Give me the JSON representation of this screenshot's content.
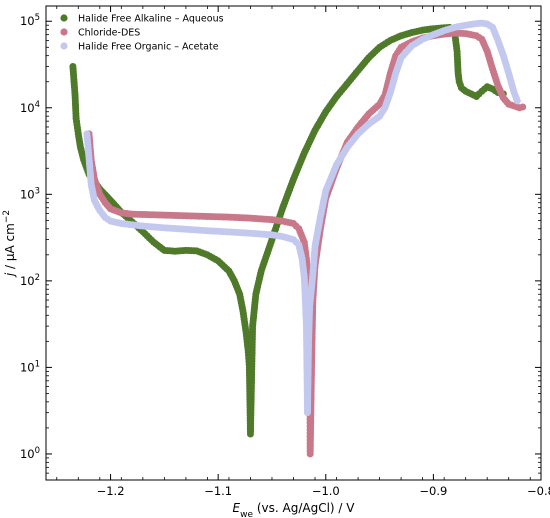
{
  "chart_data": {
    "type": "scatter",
    "xlabel": {
      "main": "E",
      "sub": "we",
      "rest": " (vs. Ag/AgCl) / V"
    },
    "ylabel": {
      "prefix": "j",
      "rest": " / µA cm",
      "sup": "−2"
    },
    "xlim": [
      -1.26,
      -0.8
    ],
    "ylim": [
      0.5,
      150000
    ],
    "y_scale": "log",
    "x_ticks": [
      -1.2,
      -1.1,
      -1.0,
      -0.9,
      -0.8
    ],
    "x_tick_labels": [
      "−1.2",
      "−1.1",
      "−1.0",
      "−0.9",
      "−0.8"
    ],
    "y_tick_exponents": [
      0,
      1,
      2,
      3,
      4,
      5
    ],
    "grid": false,
    "legend_position": "top-left",
    "series": [
      {
        "name": "Halide Free Alkaline – Aqueous",
        "color": "#4e7a2a",
        "points": [
          [
            -1.235,
            30000
          ],
          [
            -1.233,
            14000
          ],
          [
            -1.232,
            7500
          ],
          [
            -1.23,
            5000
          ],
          [
            -1.228,
            3500
          ],
          [
            -1.225,
            2500
          ],
          [
            -1.22,
            1700
          ],
          [
            -1.21,
            1150
          ],
          [
            -1.2,
            850
          ],
          [
            -1.19,
            620
          ],
          [
            -1.18,
            480
          ],
          [
            -1.17,
            370
          ],
          [
            -1.16,
            280
          ],
          [
            -1.15,
            225
          ],
          [
            -1.14,
            220
          ],
          [
            -1.13,
            225
          ],
          [
            -1.12,
            222
          ],
          [
            -1.11,
            200
          ],
          [
            -1.1,
            170
          ],
          [
            -1.09,
            130
          ],
          [
            -1.085,
            100
          ],
          [
            -1.08,
            70
          ],
          [
            -1.077,
            45
          ],
          [
            -1.074,
            25
          ],
          [
            -1.072,
            15
          ],
          [
            -1.071,
            10
          ],
          [
            -1.07,
            1.7
          ],
          [
            -1.068,
            30
          ],
          [
            -1.065,
            70
          ],
          [
            -1.06,
            130
          ],
          [
            -1.05,
            300
          ],
          [
            -1.04,
            700
          ],
          [
            -1.03,
            1500
          ],
          [
            -1.02,
            3000
          ],
          [
            -1.01,
            5500
          ],
          [
            -1.0,
            9000
          ],
          [
            -0.99,
            13500
          ],
          [
            -0.98,
            19000
          ],
          [
            -0.97,
            27000
          ],
          [
            -0.96,
            38000
          ],
          [
            -0.95,
            50000
          ],
          [
            -0.94,
            60000
          ],
          [
            -0.93,
            68000
          ],
          [
            -0.92,
            74000
          ],
          [
            -0.91,
            79000
          ],
          [
            -0.9,
            82000
          ],
          [
            -0.89,
            84000
          ],
          [
            -0.885,
            85000
          ],
          [
            -0.88,
            70000
          ],
          [
            -0.878,
            45000
          ],
          [
            -0.877,
            25000
          ],
          [
            -0.876,
            20000
          ],
          [
            -0.874,
            17000
          ],
          [
            -0.87,
            15500
          ],
          [
            -0.865,
            14500
          ],
          [
            -0.86,
            13500
          ],
          [
            -0.855,
            15500
          ],
          [
            -0.85,
            17500
          ],
          [
            -0.845,
            16500
          ],
          [
            -0.84,
            15000
          ],
          [
            -0.835,
            14500
          ]
        ]
      },
      {
        "name": "Chloride-DES",
        "color": "#c9788a",
        "points": [
          [
            -1.22,
            5000
          ],
          [
            -1.218,
            2500
          ],
          [
            -1.215,
            1500
          ],
          [
            -1.21,
            1000
          ],
          [
            -1.205,
            800
          ],
          [
            -1.2,
            680
          ],
          [
            -1.19,
            610
          ],
          [
            -1.18,
            590
          ],
          [
            -1.17,
            585
          ],
          [
            -1.15,
            575
          ],
          [
            -1.13,
            565
          ],
          [
            -1.11,
            555
          ],
          [
            -1.09,
            545
          ],
          [
            -1.07,
            530
          ],
          [
            -1.05,
            510
          ],
          [
            -1.04,
            490
          ],
          [
            -1.03,
            460
          ],
          [
            -1.025,
            400
          ],
          [
            -1.02,
            280
          ],
          [
            -1.018,
            180
          ],
          [
            -1.016,
            90
          ],
          [
            -1.015,
            40
          ],
          [
            -1.0145,
            1.0
          ],
          [
            -1.013,
            15
          ],
          [
            -1.012,
            60
          ],
          [
            -1.01,
            150
          ],
          [
            -1.005,
            400
          ],
          [
            -1.0,
            900
          ],
          [
            -0.99,
            2000
          ],
          [
            -0.98,
            4000
          ],
          [
            -0.97,
            6000
          ],
          [
            -0.96,
            8500
          ],
          [
            -0.95,
            11000
          ],
          [
            -0.945,
            14000
          ],
          [
            -0.94,
            25000
          ],
          [
            -0.935,
            40000
          ],
          [
            -0.93,
            50000
          ],
          [
            -0.92,
            58000
          ],
          [
            -0.91,
            64000
          ],
          [
            -0.9,
            68000
          ],
          [
            -0.89,
            71000
          ],
          [
            -0.88,
            73000
          ],
          [
            -0.87,
            72000
          ],
          [
            -0.86,
            68000
          ],
          [
            -0.855,
            62000
          ],
          [
            -0.85,
            45000
          ],
          [
            -0.845,
            28000
          ],
          [
            -0.84,
            18000
          ],
          [
            -0.835,
            13000
          ],
          [
            -0.83,
            11000
          ],
          [
            -0.825,
            10500
          ],
          [
            -0.82,
            10000
          ],
          [
            -0.817,
            10200
          ]
        ]
      },
      {
        "name": "Halide Free Organic – Acetate",
        "color": "#c3c9ee",
        "points": [
          [
            -1.222,
            5000
          ],
          [
            -1.22,
            2600
          ],
          [
            -1.218,
            1300
          ],
          [
            -1.215,
            850
          ],
          [
            -1.21,
            650
          ],
          [
            -1.205,
            540
          ],
          [
            -1.2,
            490
          ],
          [
            -1.19,
            460
          ],
          [
            -1.17,
            430
          ],
          [
            -1.15,
            410
          ],
          [
            -1.13,
            395
          ],
          [
            -1.11,
            380
          ],
          [
            -1.09,
            368
          ],
          [
            -1.07,
            355
          ],
          [
            -1.05,
            340
          ],
          [
            -1.04,
            325
          ],
          [
            -1.03,
            300
          ],
          [
            -1.025,
            260
          ],
          [
            -1.022,
            180
          ],
          [
            -1.02,
            110
          ],
          [
            -1.019,
            60
          ],
          [
            -1.018,
            30
          ],
          [
            -1.017,
            3.0
          ],
          [
            -1.016,
            20
          ],
          [
            -1.015,
            50
          ],
          [
            -1.012,
            120
          ],
          [
            -1.01,
            250
          ],
          [
            -1.005,
            550
          ],
          [
            -1.0,
            1100
          ],
          [
            -0.99,
            2200
          ],
          [
            -0.98,
            3500
          ],
          [
            -0.97,
            5000
          ],
          [
            -0.96,
            6500
          ],
          [
            -0.95,
            8000
          ],
          [
            -0.945,
            10000
          ],
          [
            -0.94,
            15000
          ],
          [
            -0.935,
            25000
          ],
          [
            -0.93,
            38000
          ],
          [
            -0.92,
            52000
          ],
          [
            -0.91,
            62000
          ],
          [
            -0.9,
            70000
          ],
          [
            -0.89,
            78000
          ],
          [
            -0.88,
            85000
          ],
          [
            -0.87,
            90000
          ],
          [
            -0.86,
            94000
          ],
          [
            -0.855,
            95000
          ],
          [
            -0.85,
            93000
          ],
          [
            -0.845,
            85000
          ],
          [
            -0.84,
            60000
          ],
          [
            -0.835,
            40000
          ],
          [
            -0.83,
            25000
          ],
          [
            -0.825,
            15000
          ],
          [
            -0.822,
            12000
          ]
        ]
      }
    ]
  }
}
